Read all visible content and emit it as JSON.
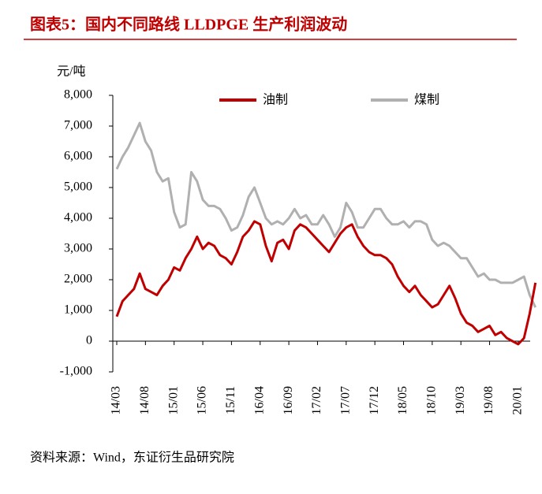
{
  "chart_data": {
    "type": "line",
    "title": "图表5：国内不同路线 LLDPGE 生产利润波动",
    "y_label": "元/吨",
    "source": "资料来源：Wind，东证衍生品研究院",
    "categories": [
      "14/03",
      null,
      null,
      null,
      null,
      "14/08",
      null,
      null,
      null,
      null,
      "15/01",
      null,
      null,
      null,
      null,
      "15/06",
      null,
      null,
      null,
      null,
      "15/11",
      null,
      null,
      null,
      null,
      "16/04",
      null,
      null,
      null,
      null,
      "16/09",
      null,
      null,
      null,
      null,
      "17/02",
      null,
      null,
      null,
      null,
      "17/07",
      null,
      null,
      null,
      null,
      "17/12",
      null,
      null,
      null,
      null,
      "18/05",
      null,
      null,
      null,
      null,
      "18/10",
      null,
      null,
      null,
      null,
      "19/03",
      null,
      null,
      null,
      null,
      "19/08",
      null,
      null,
      null,
      null,
      "20/01",
      null,
      null,
      null
    ],
    "series": [
      {
        "name": "油制",
        "color": "#c00000",
        "values": [
          800,
          1300,
          1500,
          1700,
          2200,
          1700,
          1600,
          1500,
          1800,
          2000,
          2400,
          2300,
          2700,
          3000,
          3400,
          3000,
          3200,
          3100,
          2800,
          2700,
          2500,
          2900,
          3400,
          3600,
          3900,
          3800,
          3100,
          2600,
          3200,
          3300,
          3000,
          3600,
          3800,
          3700,
          3500,
          3300,
          3100,
          2900,
          3200,
          3500,
          3700,
          3800,
          3400,
          3100,
          2900,
          2800,
          2800,
          2700,
          2500,
          2100,
          1800,
          1600,
          1800,
          1500,
          1300,
          1100,
          1200,
          1500,
          1800,
          1400,
          900,
          600,
          500,
          300,
          400,
          500,
          200,
          300,
          100,
          0,
          -100,
          100,
          900,
          1900
        ]
      },
      {
        "name": "煤制",
        "color": "#b0b0b0",
        "values": [
          5600,
          6000,
          6300,
          6700,
          7100,
          6500,
          6200,
          5500,
          5200,
          5300,
          4200,
          3700,
          3800,
          5500,
          5200,
          4600,
          4400,
          4400,
          4300,
          4000,
          3600,
          3700,
          4100,
          4700,
          5000,
          4500,
          4000,
          3800,
          3900,
          3800,
          4000,
          4300,
          4000,
          4100,
          3800,
          3800,
          4100,
          3800,
          3400,
          3700,
          4500,
          4200,
          3700,
          3700,
          4000,
          4300,
          4300,
          4000,
          3800,
          3800,
          3900,
          3700,
          3900,
          3900,
          3800,
          3300,
          3100,
          3200,
          3100,
          2900,
          2700,
          2700,
          2400,
          2100,
          2200,
          2000,
          2000,
          1900,
          1900,
          1900,
          2000,
          2100,
          1500,
          1100
        ]
      }
    ],
    "ylim": [
      -1000,
      8000
    ],
    "yticks": [
      {
        "value": -1000,
        "label": "-1,000"
      },
      0,
      {
        "value": 1000,
        "label": "1,000"
      },
      {
        "value": 2000,
        "label": "2,000"
      },
      {
        "value": 3000,
        "label": "3,000"
      },
      {
        "value": 4000,
        "label": "4,000"
      },
      {
        "value": 5000,
        "label": "5,000"
      },
      {
        "value": 6000,
        "label": "6,000"
      },
      {
        "value": 7000,
        "label": "7,000"
      },
      {
        "value": 8000,
        "label": "8,000"
      }
    ],
    "grid": false,
    "legend": "top"
  }
}
